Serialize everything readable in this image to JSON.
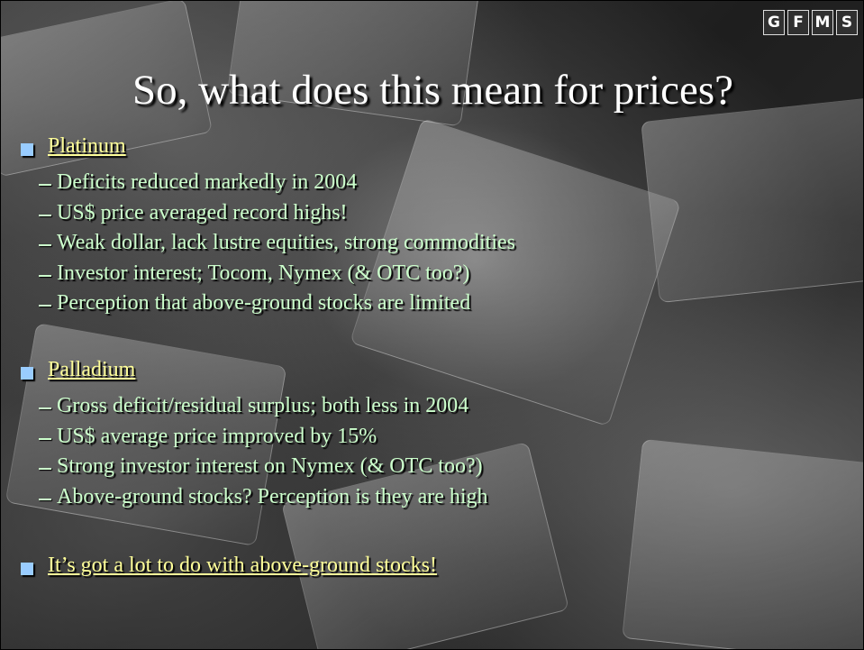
{
  "logo": [
    "G",
    "F",
    "M",
    "S"
  ],
  "title": "So, what does this mean for prices?",
  "sections": [
    {
      "heading": "Platinum",
      "items": [
        "Deficits reduced markedly in 2004",
        "US$ price averaged record highs!",
        "Weak dollar, lack lustre equities, strong commodities",
        "Investor interest; Tocom, Nymex (& OTC too?)",
        "Perception that above-ground stocks are limited"
      ]
    },
    {
      "heading": "Palladium",
      "items": [
        "Gross deficit/residual surplus; both less in 2004",
        "US$ average price improved by 15%",
        "Strong investor interest on Nymex (& OTC too?)",
        "Above-ground stocks? Perception is they are high"
      ]
    }
  ],
  "footer": "It’s got a lot to do with above-ground stocks!"
}
